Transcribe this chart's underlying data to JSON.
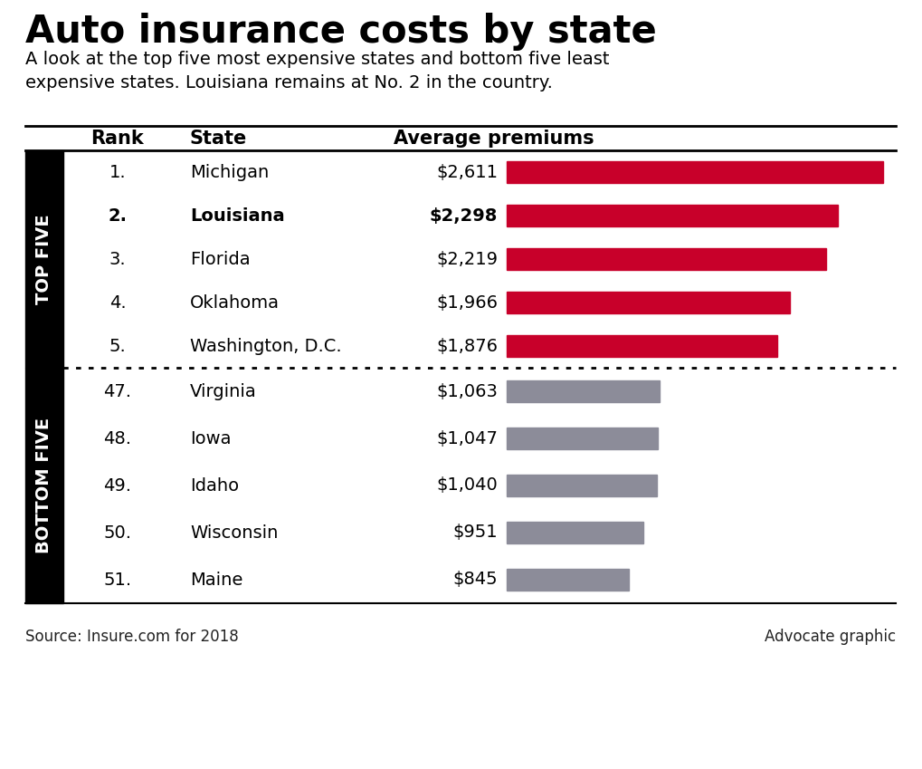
{
  "title": "Auto insurance costs by state",
  "subtitle": "A look at the top five most expensive states and bottom five least\nexpensive states. Louisiana remains at No. 2 in the country.",
  "col_headers": [
    "Rank",
    "State",
    "Average premiums"
  ],
  "top_five": [
    {
      "rank": "1.",
      "state": "Michigan",
      "premium": "$2,611",
      "value": 2611,
      "bold": false
    },
    {
      "rank": "2.",
      "state": "Louisiana",
      "premium": "$2,298",
      "value": 2298,
      "bold": true
    },
    {
      "rank": "3.",
      "state": "Florida",
      "premium": "$2,219",
      "value": 2219,
      "bold": false
    },
    {
      "rank": "4.",
      "state": "Oklahoma",
      "premium": "$1,966",
      "value": 1966,
      "bold": false
    },
    {
      "rank": "5.",
      "state": "Washington, D.C.",
      "premium": "$1,876",
      "value": 1876,
      "bold": false
    }
  ],
  "bottom_five": [
    {
      "rank": "47.",
      "state": "Virginia",
      "premium": "$1,063",
      "value": 1063,
      "bold": false
    },
    {
      "rank": "48.",
      "state": "Iowa",
      "premium": "$1,047",
      "value": 1047,
      "bold": false
    },
    {
      "rank": "49.",
      "state": "Idaho",
      "premium": "$1,040",
      "value": 1040,
      "bold": false
    },
    {
      "rank": "50.",
      "state": "Wisconsin",
      "premium": "$951",
      "value": 951,
      "bold": false
    },
    {
      "rank": "51.",
      "state": "Maine",
      "premium": "$845",
      "value": 845,
      "bold": false
    }
  ],
  "top_bar_color": "#c8002a",
  "bottom_bar_color": "#8c8c99",
  "background_color": "#ffffff",
  "top_section_label": "TOP FIVE",
  "bottom_section_label": "BOTTOM FIVE",
  "source_text": "Source: Insure.com for 2018",
  "credit_text": "Advocate graphic",
  "max_bar_value": 2700,
  "title_fontsize": 30,
  "subtitle_fontsize": 14,
  "header_fontsize": 15,
  "row_fontsize": 14,
  "section_label_fontsize": 14,
  "footer_fontsize": 12
}
